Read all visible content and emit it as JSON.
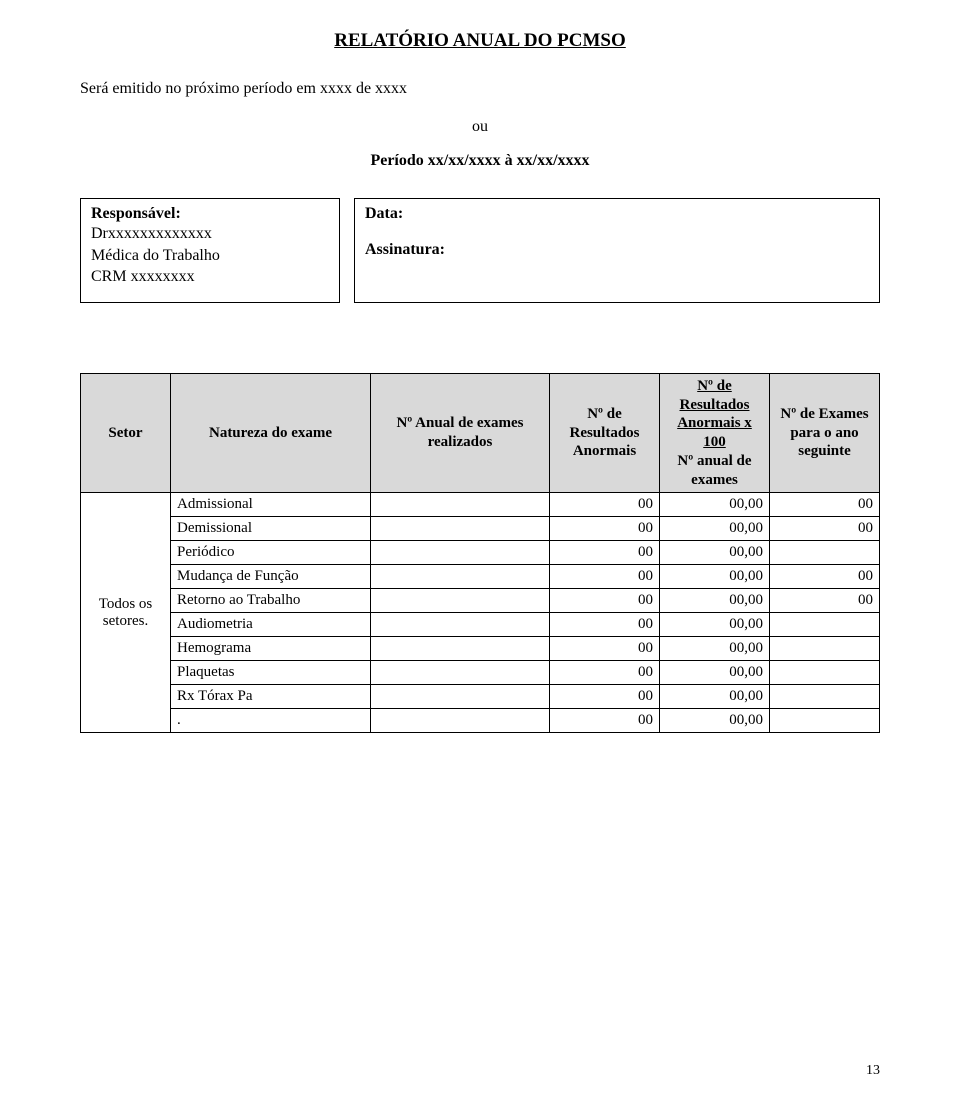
{
  "title": "RELATÓRIO ANUAL DO PCMSO",
  "intro": "Será emitido no próximo período em xxxx de xxxx",
  "ou": "ou",
  "periodo": "Período xx/xx/xxxx à xx/xx/xxxx",
  "responsible": {
    "label": "Responsável:",
    "name": "Drxxxxxxxxxxxxx",
    "role": "Médica do Trabalho",
    "crm": "CRM xxxxxxxx"
  },
  "right_box": {
    "data_label": "Data:",
    "assinatura_label": "Assinatura:"
  },
  "table": {
    "headers": {
      "setor": "Setor",
      "natureza": "Natureza do exame",
      "anual": "Nº Anual de exames realizados",
      "resultados": "Nº de Resultados Anormais",
      "frac_top": "Nº de Resultados Anormais x 100",
      "frac_bottom": "Nº anual de exames",
      "exames_seguinte": "Nº de Exames para o ano seguinte"
    },
    "setor_label": "Todos os setores.",
    "rows": [
      {
        "natureza": "Admissional",
        "anual": "",
        "res": "00",
        "frac": "00,00",
        "seg": "00"
      },
      {
        "natureza": "Demissional",
        "anual": "",
        "res": "00",
        "frac": "00,00",
        "seg": "00"
      },
      {
        "natureza": "Periódico",
        "anual": "",
        "res": "00",
        "frac": "00,00",
        "seg": ""
      },
      {
        "natureza": "Mudança de Função",
        "anual": "",
        "res": "00",
        "frac": "00,00",
        "seg": "00"
      },
      {
        "natureza": "Retorno ao Trabalho",
        "anual": "",
        "res": "00",
        "frac": "00,00",
        "seg": "00"
      },
      {
        "natureza": "Audiometria",
        "anual": "",
        "res": "00",
        "frac": "00,00",
        "seg": ""
      },
      {
        "natureza": "Hemograma",
        "anual": "",
        "res": "00",
        "frac": "00,00",
        "seg": ""
      },
      {
        "natureza": "Plaquetas",
        "anual": "",
        "res": "00",
        "frac": "00,00",
        "seg": ""
      },
      {
        "natureza": "Rx Tórax Pa",
        "anual": "",
        "res": "00",
        "frac": "00,00",
        "seg": ""
      },
      {
        "natureza": ".",
        "anual": "",
        "res": "00",
        "frac": "00,00",
        "seg": ""
      }
    ]
  },
  "page_number": "13",
  "colors": {
    "header_bg": "#d9d9d9",
    "border": "#000000",
    "text": "#000000",
    "background": "#ffffff"
  }
}
